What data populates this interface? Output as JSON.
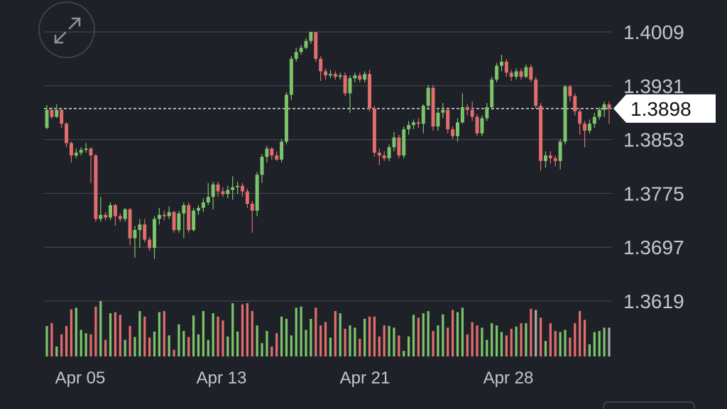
{
  "controls": {
    "expand_icon": "expand-arrows-icon"
  },
  "colors": {
    "background": "#1f2128",
    "grid": "#4a4c54",
    "up": "#7cc46a",
    "down": "#e26d6d",
    "neutral": "#a9abb1",
    "text": "#c4c6cc",
    "price_tag_bg": "#ffffff"
  },
  "chart_data": {
    "type": "candlestick",
    "y_ticks": [
      "1.4009",
      "1.3931",
      "1.3853",
      "1.3775",
      "1.3697",
      "1.3619"
    ],
    "ylim": [
      1.3619,
      1.4009
    ],
    "x_ticks": [
      "Apr 05",
      "Apr 13",
      "Apr 21",
      "Apr 28"
    ],
    "current_price": "1.3898",
    "current_price_value": 1.3898,
    "candles": [
      [
        1.387,
        1.3896,
        1.3903,
        1.3868
      ],
      [
        1.3896,
        1.3886,
        1.39,
        1.3883
      ],
      [
        1.3886,
        1.3896,
        1.3904,
        1.3884
      ],
      [
        1.3896,
        1.3876,
        1.3898,
        1.387
      ],
      [
        1.3876,
        1.3848,
        1.3878,
        1.3842
      ],
      [
        1.3848,
        1.383,
        1.385,
        1.382
      ],
      [
        1.383,
        1.3834,
        1.384,
        1.3826
      ],
      [
        1.3834,
        1.3838,
        1.3842,
        1.383
      ],
      [
        1.3838,
        1.384,
        1.3848,
        1.3834
      ],
      [
        1.384,
        1.383,
        1.3842,
        1.379
      ],
      [
        1.383,
        1.3738,
        1.3832,
        1.3734
      ],
      [
        1.3738,
        1.3744,
        1.377,
        1.3734
      ],
      [
        1.3744,
        1.374,
        1.3748,
        1.3736
      ],
      [
        1.374,
        1.3758,
        1.3762,
        1.3736
      ],
      [
        1.3758,
        1.3742,
        1.376,
        1.3728
      ],
      [
        1.3742,
        1.3738,
        1.3746,
        1.3734
      ],
      [
        1.3738,
        1.3752,
        1.3754,
        1.3734
      ],
      [
        1.3752,
        1.371,
        1.3754,
        1.37
      ],
      [
        1.371,
        1.3722,
        1.3728,
        1.3682
      ],
      [
        1.3722,
        1.373,
        1.3738,
        1.3696
      ],
      [
        1.373,
        1.3708,
        1.3738,
        1.3704
      ],
      [
        1.3708,
        1.3696,
        1.3712,
        1.3692
      ],
      [
        1.3696,
        1.3738,
        1.3742,
        1.368
      ],
      [
        1.3738,
        1.3744,
        1.3754,
        1.373
      ],
      [
        1.3744,
        1.3742,
        1.375,
        1.3736
      ],
      [
        1.3742,
        1.3748,
        1.3756,
        1.3738
      ],
      [
        1.3748,
        1.3722,
        1.375,
        1.3718
      ],
      [
        1.3722,
        1.3746,
        1.375,
        1.3718
      ],
      [
        1.3746,
        1.3758,
        1.3762,
        1.371
      ],
      [
        1.3758,
        1.3722,
        1.3762,
        1.3718
      ],
      [
        1.3722,
        1.375,
        1.3754,
        1.372
      ],
      [
        1.375,
        1.3754,
        1.3758,
        1.3744
      ],
      [
        1.3754,
        1.3762,
        1.3768,
        1.3748
      ],
      [
        1.3762,
        1.377,
        1.379,
        1.3758
      ],
      [
        1.377,
        1.3788,
        1.3792,
        1.3752
      ],
      [
        1.3788,
        1.3778,
        1.3792,
        1.377
      ],
      [
        1.3778,
        1.3774,
        1.3784,
        1.377
      ],
      [
        1.3774,
        1.378,
        1.3786,
        1.3768
      ],
      [
        1.378,
        1.3784,
        1.38,
        1.3766
      ],
      [
        1.3784,
        1.3786,
        1.3792,
        1.3774
      ],
      [
        1.3786,
        1.3778,
        1.379,
        1.377
      ],
      [
        1.3778,
        1.376,
        1.3782,
        1.3754
      ],
      [
        1.376,
        1.375,
        1.3764,
        1.3718
      ],
      [
        1.375,
        1.3802,
        1.3806,
        1.3742
      ],
      [
        1.3802,
        1.3828,
        1.3832,
        1.379
      ],
      [
        1.3828,
        1.384,
        1.3844,
        1.382
      ],
      [
        1.384,
        1.383,
        1.3842,
        1.3824
      ],
      [
        1.383,
        1.3824,
        1.3836,
        1.3822
      ],
      [
        1.3824,
        1.385,
        1.3854,
        1.382
      ],
      [
        1.385,
        1.3918,
        1.3922,
        1.3846
      ],
      [
        1.3918,
        1.397,
        1.3974,
        1.391
      ],
      [
        1.397,
        1.398,
        1.3986,
        1.3966
      ],
      [
        1.398,
        1.3986,
        1.399,
        1.3976
      ],
      [
        1.3986,
        1.3996,
        1.4,
        1.3984
      ],
      [
        1.3996,
        1.4009,
        1.4009,
        1.3992
      ],
      [
        1.4009,
        1.397,
        1.4009,
        1.3966
      ],
      [
        1.397,
        1.3952,
        1.3974,
        1.3938
      ],
      [
        1.3952,
        1.3946,
        1.3956,
        1.394
      ],
      [
        1.3946,
        1.3948,
        1.3954,
        1.3942
      ],
      [
        1.3948,
        1.3944,
        1.3952,
        1.394
      ],
      [
        1.3944,
        1.3946,
        1.395,
        1.394
      ],
      [
        1.3946,
        1.392,
        1.395,
        1.3916
      ],
      [
        1.392,
        1.3942,
        1.3946,
        1.3892
      ],
      [
        1.3942,
        1.3946,
        1.395,
        1.3936
      ],
      [
        1.3946,
        1.394,
        1.395,
        1.3936
      ],
      [
        1.394,
        1.3948,
        1.3952,
        1.3936
      ],
      [
        1.3948,
        1.3898,
        1.3954,
        1.3894
      ],
      [
        1.3898,
        1.3834,
        1.3902,
        1.3828
      ],
      [
        1.3834,
        1.383,
        1.384,
        1.3816
      ],
      [
        1.383,
        1.3826,
        1.3836,
        1.3822
      ],
      [
        1.3826,
        1.3842,
        1.3846,
        1.3822
      ],
      [
        1.3842,
        1.3856,
        1.3864,
        1.3836
      ],
      [
        1.3856,
        1.383,
        1.386,
        1.3826
      ],
      [
        1.383,
        1.3868,
        1.3872,
        1.3826
      ],
      [
        1.3868,
        1.3874,
        1.388,
        1.386
      ],
      [
        1.3874,
        1.3878,
        1.3882,
        1.3868
      ],
      [
        1.3878,
        1.3876,
        1.3884,
        1.387
      ],
      [
        1.3876,
        1.3902,
        1.3904,
        1.3862
      ],
      [
        1.3902,
        1.3928,
        1.3932,
        1.3896
      ],
      [
        1.3928,
        1.3872,
        1.3932,
        1.3866
      ],
      [
        1.3872,
        1.3892,
        1.3896,
        1.3866
      ],
      [
        1.3892,
        1.3896,
        1.3906,
        1.3884
      ],
      [
        1.3896,
        1.3868,
        1.39,
        1.3862
      ],
      [
        1.3868,
        1.3858,
        1.3872,
        1.3854
      ],
      [
        1.3858,
        1.3878,
        1.3884,
        1.385
      ],
      [
        1.3878,
        1.39,
        1.392,
        1.3876
      ],
      [
        1.39,
        1.3896,
        1.3904,
        1.3888
      ],
      [
        1.3896,
        1.3886,
        1.3908,
        1.388
      ],
      [
        1.3886,
        1.3862,
        1.389,
        1.3858
      ],
      [
        1.3862,
        1.3884,
        1.3888,
        1.3858
      ],
      [
        1.3884,
        1.39,
        1.3906,
        1.388
      ],
      [
        1.39,
        1.394,
        1.3944,
        1.3896
      ],
      [
        1.394,
        1.396,
        1.3964,
        1.3936
      ],
      [
        1.396,
        1.3966,
        1.3976,
        1.3952
      ],
      [
        1.3966,
        1.395,
        1.397,
        1.3944
      ],
      [
        1.395,
        1.3944,
        1.3954,
        1.3938
      ],
      [
        1.3944,
        1.3952,
        1.3956,
        1.394
      ],
      [
        1.3952,
        1.3944,
        1.3956,
        1.394
      ],
      [
        1.3944,
        1.3958,
        1.3962,
        1.3942
      ],
      [
        1.3958,
        1.394,
        1.3962,
        1.3936
      ],
      [
        1.394,
        1.3902,
        1.3944,
        1.3898
      ],
      [
        1.3902,
        1.3822,
        1.3906,
        1.3808
      ],
      [
        1.3822,
        1.383,
        1.3836,
        1.3812
      ],
      [
        1.383,
        1.3826,
        1.3836,
        1.3818
      ],
      [
        1.3826,
        1.3822,
        1.383,
        1.3814
      ],
      [
        1.3822,
        1.385,
        1.3854,
        1.381
      ],
      [
        1.385,
        1.393,
        1.3932,
        1.3846
      ],
      [
        1.393,
        1.3916,
        1.3932,
        1.3908
      ],
      [
        1.3916,
        1.3894,
        1.392,
        1.3888
      ],
      [
        1.3894,
        1.3876,
        1.3898,
        1.386
      ],
      [
        1.3876,
        1.3866,
        1.388,
        1.3842
      ],
      [
        1.3866,
        1.3876,
        1.3882,
        1.3862
      ],
      [
        1.3876,
        1.3886,
        1.3892,
        1.387
      ],
      [
        1.3886,
        1.3896,
        1.39,
        1.3882
      ],
      [
        1.3896,
        1.3904,
        1.3908,
        1.3886
      ],
      [
        1.3904,
        1.3898,
        1.3908,
        1.3876
      ]
    ],
    "volumes": [
      0.55,
      0.6,
      0.18,
      0.4,
      0.55,
      0.85,
      0.88,
      0.48,
      0.42,
      0.4,
      0.9,
      1.0,
      0.3,
      0.78,
      0.8,
      0.75,
      0.3,
      0.55,
      0.35,
      0.82,
      0.72,
      0.34,
      0.45,
      0.8,
      0.82,
      0.38,
      0.12,
      0.58,
      0.46,
      0.35,
      0.74,
      0.4,
      0.82,
      0.3,
      0.78,
      0.72,
      0.65,
      0.36,
      0.96,
      0.45,
      0.94,
      0.96,
      0.82,
      0.56,
      0.24,
      0.46,
      0.18,
      0.42,
      0.72,
      0.68,
      0.38,
      0.88,
      0.9,
      0.48,
      0.68,
      0.88,
      0.56,
      0.62,
      0.34,
      0.82,
      0.78,
      0.5,
      0.56,
      0.52,
      0.32,
      0.68,
      0.72,
      0.72,
      0.36,
      0.56,
      0.55,
      0.52,
      0.38,
      0.1,
      0.36,
      0.75,
      0.7,
      0.78,
      0.82,
      0.46,
      0.56,
      0.76,
      0.52,
      0.84,
      0.8,
      0.88,
      0.4,
      0.62,
      0.56,
      0.52,
      0.3,
      0.6,
      0.56,
      0.44,
      0.38,
      0.5,
      0.54,
      0.6,
      0.6,
      0.86,
      0.84,
      0.7,
      0.28,
      0.6,
      0.46,
      0.44,
      0.48,
      0.34,
      0.6,
      0.82,
      0.66,
      0.22,
      0.44,
      0.46,
      0.52,
      0.52
    ]
  }
}
